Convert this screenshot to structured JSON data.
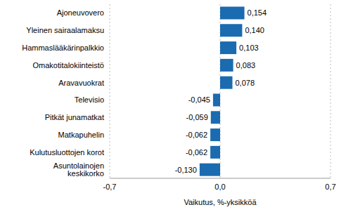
{
  "chart_data": {
    "type": "bar",
    "orientation": "horizontal",
    "categories": [
      "Ajoneuvovero",
      "Yleinen sairaalamaksu",
      "Hammaslääkärinpalkkio",
      "Omakotitalokiinteistö",
      "Aravavuokrat",
      "Televisio",
      "Pitkät junamatkat",
      "Matkapuhelin",
      "Kulutusluottojen korot",
      "Asuntolainojen keskikorko"
    ],
    "values": [
      0.154,
      0.14,
      0.103,
      0.083,
      0.078,
      -0.045,
      -0.059,
      -0.062,
      -0.062,
      -0.13
    ],
    "value_labels": [
      "0,154",
      "0,140",
      "0,103",
      "0,083",
      "0,078",
      "-0,045",
      "-0,059",
      "-0,062",
      "-0,062",
      "-0,130"
    ],
    "data_labels": true,
    "color": "#1a6bb0",
    "x_label": "Vaikutus, %-yksikköä",
    "xlim": [
      -0.7,
      0.7
    ],
    "xticks": [
      {
        "value": -0.7,
        "label": "-0,7"
      },
      {
        "value": 0,
        "label": "0,0"
      },
      {
        "value": 0.7,
        "label": "0,7"
      }
    ],
    "grid": true
  }
}
